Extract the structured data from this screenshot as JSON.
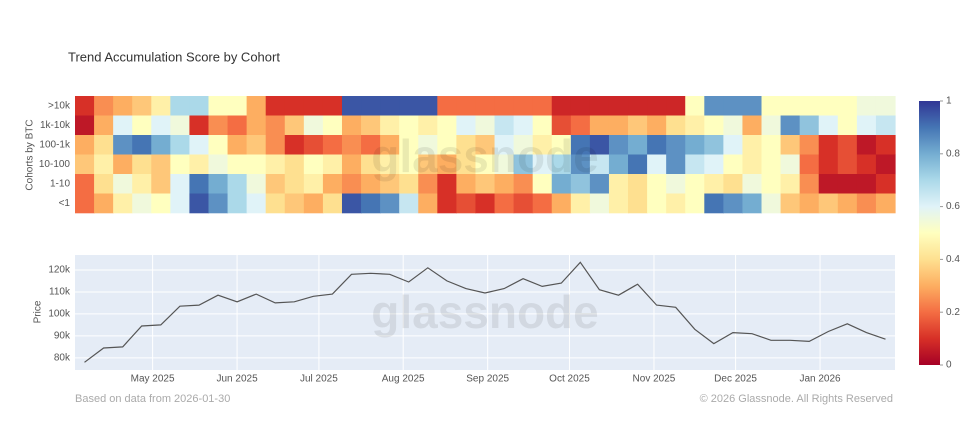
{
  "chart_data": [
    {
      "type": "heatmap",
      "title": "Trend Accumulation Score by Cohort",
      "ylabel": "Cohorts by BTC",
      "watermark": "glassnode",
      "colorscale": [
        "#a50026",
        "#d73027",
        "#f46d43",
        "#fdae61",
        "#fee090",
        "#ffffbf",
        "#e0f3f8",
        "#abd9e9",
        "#74add1",
        "#4575b4",
        "#313695"
      ],
      "zlim": [
        0,
        1
      ],
      "zticks": [
        0,
        0.2,
        0.4,
        0.6,
        0.8,
        1
      ],
      "rows": [
        {
          "name": ">10k",
          "values": [
            0.1,
            0.25,
            0.3,
            0.35,
            0.45,
            0.7,
            0.7,
            0.5,
            0.5,
            0.3,
            0.1,
            0.1,
            0.1,
            0.1,
            0.95,
            0.95,
            0.95,
            0.95,
            0.95,
            0.2,
            0.2,
            0.2,
            0.2,
            0.2,
            0.2,
            0.08,
            0.08,
            0.08,
            0.08,
            0.08,
            0.08,
            0.08,
            0.5,
            0.85,
            0.85,
            0.85,
            0.5,
            0.5,
            0.5,
            0.5,
            0.5,
            0.55,
            0.55
          ]
        },
        {
          "name": "1k-10k",
          "values": [
            0.05,
            0.3,
            0.6,
            0.5,
            0.6,
            0.55,
            0.1,
            0.25,
            0.2,
            0.3,
            0.25,
            0.35,
            0.55,
            0.5,
            0.3,
            0.35,
            0.45,
            0.5,
            0.45,
            0.5,
            0.6,
            0.55,
            0.65,
            0.6,
            0.5,
            0.15,
            0.2,
            0.3,
            0.3,
            0.35,
            0.3,
            0.4,
            0.45,
            0.5,
            0.55,
            0.3,
            0.55,
            0.85,
            0.75,
            0.6,
            0.5,
            0.6,
            0.65
          ]
        },
        {
          "name": "100-1k",
          "values": [
            0.3,
            0.4,
            0.85,
            0.9,
            0.8,
            0.7,
            0.6,
            0.5,
            0.3,
            0.35,
            0.25,
            0.1,
            0.15,
            0.2,
            0.25,
            0.2,
            0.3,
            0.5,
            0.55,
            0.5,
            0.4,
            0.35,
            0.6,
            0.55,
            0.45,
            0.5,
            0.9,
            0.95,
            0.85,
            0.8,
            0.9,
            0.85,
            0.8,
            0.75,
            0.6,
            0.45,
            0.5,
            0.35,
            0.25,
            0.1,
            0.15,
            0.05,
            0.1
          ]
        },
        {
          "name": "10-100",
          "values": [
            0.35,
            0.45,
            0.3,
            0.4,
            0.35,
            0.5,
            0.45,
            0.55,
            0.5,
            0.5,
            0.45,
            0.4,
            0.5,
            0.45,
            0.3,
            0.4,
            0.45,
            0.5,
            0.35,
            0.3,
            0.4,
            0.5,
            0.55,
            0.75,
            0.6,
            0.7,
            0.85,
            0.65,
            0.8,
            0.9,
            0.6,
            0.85,
            0.65,
            0.6,
            0.5,
            0.45,
            0.5,
            0.55,
            0.2,
            0.1,
            0.15,
            0.1,
            0.05
          ]
        },
        {
          "name": "1-10",
          "values": [
            0.2,
            0.4,
            0.55,
            0.45,
            0.35,
            0.6,
            0.9,
            0.8,
            0.7,
            0.55,
            0.35,
            0.4,
            0.45,
            0.3,
            0.25,
            0.3,
            0.35,
            0.4,
            0.25,
            0.1,
            0.3,
            0.35,
            0.3,
            0.25,
            0.5,
            0.8,
            0.75,
            0.85,
            0.45,
            0.4,
            0.5,
            0.55,
            0.5,
            0.45,
            0.4,
            0.55,
            0.5,
            0.45,
            0.25,
            0.05,
            0.05,
            0.05,
            0.1
          ]
        },
        {
          "name": "<1",
          "values": [
            0.2,
            0.3,
            0.45,
            0.55,
            0.5,
            0.6,
            0.95,
            0.85,
            0.7,
            0.6,
            0.4,
            0.35,
            0.3,
            0.4,
            0.95,
            0.9,
            0.85,
            0.65,
            0.3,
            0.1,
            0.15,
            0.1,
            0.2,
            0.15,
            0.2,
            0.3,
            0.45,
            0.55,
            0.45,
            0.4,
            0.5,
            0.45,
            0.5,
            0.9,
            0.85,
            0.8,
            0.55,
            0.35,
            0.3,
            0.35,
            0.3,
            0.25,
            0.3
          ]
        }
      ]
    },
    {
      "type": "line",
      "ylabel": "Price",
      "watermark": "glassnode",
      "color": "#555555",
      "values": [
        78000,
        84500,
        85000,
        94500,
        95000,
        103500,
        104000,
        108500,
        105500,
        109000,
        105000,
        105500,
        108000,
        109000,
        118000,
        118500,
        118000,
        114500,
        121000,
        115000,
        111500,
        109500,
        111500,
        116000,
        112500,
        114000,
        123500,
        111000,
        108500,
        113500,
        104000,
        103000,
        93000,
        86500,
        91500,
        91000,
        88000,
        88000,
        87500,
        92000,
        95500,
        91500,
        88500
      ],
      "xlim": [
        -0.5,
        42.5
      ],
      "xticks": [
        {
          "value": 3.57,
          "label": "May 2025"
        },
        {
          "value": 8,
          "label": "Jun 2025"
        },
        {
          "value": 12.29,
          "label": "Jul 2025"
        },
        {
          "value": 16.71,
          "label": "Aug 2025"
        },
        {
          "value": 21.14,
          "label": "Sep 2025"
        },
        {
          "value": 25.43,
          "label": "Oct 2025"
        },
        {
          "value": 29.86,
          "label": "Nov 2025"
        },
        {
          "value": 34.14,
          "label": "Dec 2025"
        },
        {
          "value": 38.57,
          "label": "Jan 2026"
        }
      ],
      "ylim": [
        74500,
        126800
      ],
      "yticks": [
        {
          "value": 80000,
          "label": "80k"
        },
        {
          "value": 90000,
          "label": "90k"
        },
        {
          "value": 100000,
          "label": "100k"
        },
        {
          "value": 110000,
          "label": "110k"
        },
        {
          "value": 120000,
          "label": "120k"
        }
      ],
      "grid": true
    }
  ],
  "footer": {
    "left": "Based on data from 2026-01-30",
    "right": "© 2026 Glassnode. All Rights Reserved"
  }
}
